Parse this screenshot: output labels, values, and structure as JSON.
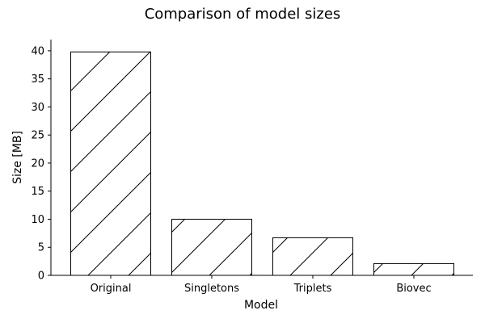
{
  "chart_data": {
    "type": "bar",
    "title": "Comparison of model sizes",
    "xlabel": "Model",
    "ylabel": "Size [MB]",
    "categories": [
      "Original",
      "Singletons",
      "Triplets",
      "Biovec"
    ],
    "values": [
      39.8,
      10.0,
      6.7,
      2.1
    ],
    "ylim": [
      0,
      42
    ],
    "yticks": [
      0,
      5,
      10,
      15,
      20,
      25,
      30,
      35,
      40
    ],
    "grid": false,
    "bar_fill": "#ffffff",
    "bar_edge": "#000000",
    "hatch": "diagonal"
  }
}
